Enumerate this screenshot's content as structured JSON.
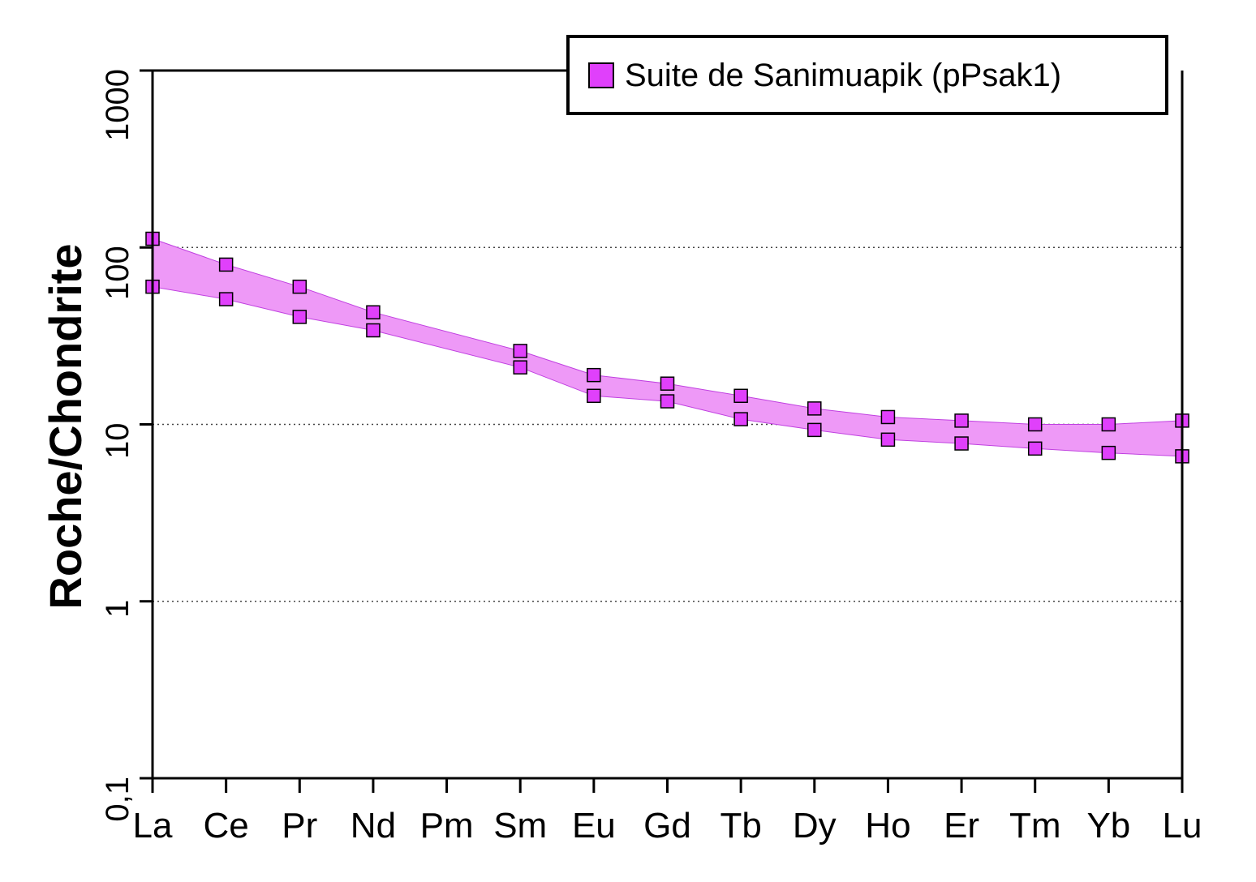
{
  "chart_data": {
    "type": "line",
    "ylabel": "Roche/Chondrite",
    "xlabel": "",
    "y_scale": "log",
    "ylim": [
      0.1,
      1000
    ],
    "y_ticks": [
      {
        "value": 0.1,
        "label": "0,1"
      },
      {
        "value": 1,
        "label": "1"
      },
      {
        "value": 10,
        "label": "10"
      },
      {
        "value": 100,
        "label": "100"
      },
      {
        "value": 1000,
        "label": "1000"
      }
    ],
    "grid": {
      "y_values": [
        1,
        10,
        100
      ],
      "style": "dotted"
    },
    "categories": [
      "La",
      "Ce",
      "Pr",
      "Nd",
      "Pm",
      "Sm",
      "Eu",
      "Gd",
      "Tb",
      "Dy",
      "Ho",
      "Er",
      "Tm",
      "Yb",
      "Lu"
    ],
    "legend": {
      "label": "Suite de Sanimuapik (pPsak1)",
      "placement": "top-right"
    },
    "fill_color": "#ee99f7",
    "marker_color": "#e040fb",
    "series": [
      {
        "values": [
          112,
          80,
          60,
          43,
          null,
          26,
          19,
          17,
          14.5,
          12.3,
          11,
          10.5,
          10,
          10,
          10.5
        ]
      },
      {
        "values": [
          60,
          51,
          40.5,
          34,
          null,
          21,
          14.5,
          13.5,
          10.7,
          9.3,
          8.2,
          7.8,
          7.3,
          6.9,
          6.6
        ]
      }
    ]
  }
}
